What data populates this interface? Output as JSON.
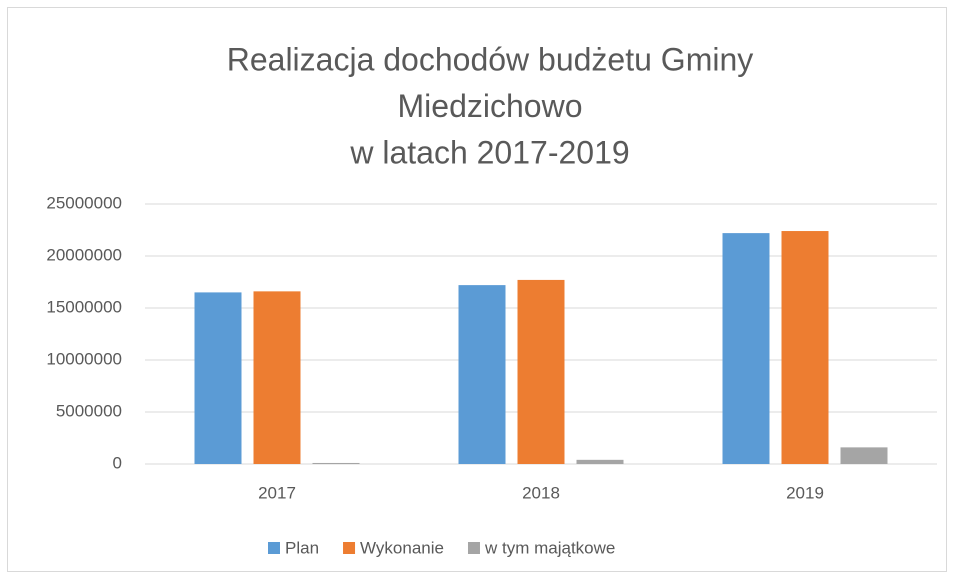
{
  "chart_data": {
    "type": "bar",
    "title": [
      "Realizacja dochodów budżetu Gminy",
      "Miedzichowo",
      "w latach 2017-2019"
    ],
    "categories": [
      "2017",
      "2018",
      "2019"
    ],
    "series": [
      {
        "name": "Plan",
        "color": "#5b9bd5",
        "values": [
          16500000,
          17200000,
          22200000
        ]
      },
      {
        "name": "Wykonanie",
        "color": "#ed7d31",
        "values": [
          16600000,
          17700000,
          22400000
        ]
      },
      {
        "name": "w tym majątkowe",
        "color": "#a5a5a5",
        "values": [
          100000,
          400000,
          1600000
        ]
      }
    ],
    "ylim": [
      0,
      25000000
    ],
    "yticks": [
      0,
      5000000,
      10000000,
      15000000,
      20000000,
      25000000
    ],
    "grid": true,
    "legend": "bottom"
  }
}
